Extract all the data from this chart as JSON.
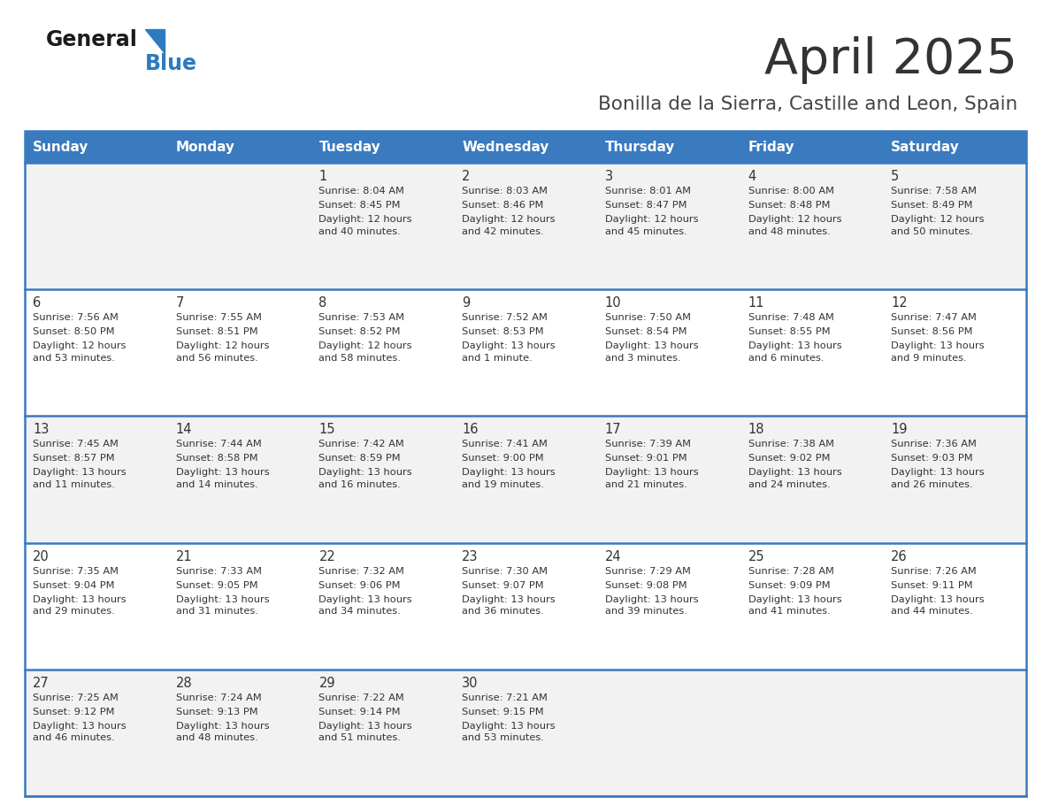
{
  "title": "April 2025",
  "subtitle": "Bonilla de la Sierra, Castille and Leon, Spain",
  "header_bg_color": "#3a7abf",
  "header_text_color": "#ffffff",
  "days_of_week": [
    "Sunday",
    "Monday",
    "Tuesday",
    "Wednesday",
    "Thursday",
    "Friday",
    "Saturday"
  ],
  "row_bg_even": "#f2f2f2",
  "row_bg_odd": "#ffffff",
  "cell_text_color": "#333333",
  "separator_color": "#3a7abf",
  "title_color": "#333333",
  "subtitle_color": "#444444",
  "calendar_data": [
    [
      {
        "day": "",
        "sunrise": "",
        "sunset": "",
        "daylight": ""
      },
      {
        "day": "",
        "sunrise": "",
        "sunset": "",
        "daylight": ""
      },
      {
        "day": "1",
        "sunrise": "Sunrise: 8:04 AM",
        "sunset": "Sunset: 8:45 PM",
        "daylight": "Daylight: 12 hours\nand 40 minutes."
      },
      {
        "day": "2",
        "sunrise": "Sunrise: 8:03 AM",
        "sunset": "Sunset: 8:46 PM",
        "daylight": "Daylight: 12 hours\nand 42 minutes."
      },
      {
        "day": "3",
        "sunrise": "Sunrise: 8:01 AM",
        "sunset": "Sunset: 8:47 PM",
        "daylight": "Daylight: 12 hours\nand 45 minutes."
      },
      {
        "day": "4",
        "sunrise": "Sunrise: 8:00 AM",
        "sunset": "Sunset: 8:48 PM",
        "daylight": "Daylight: 12 hours\nand 48 minutes."
      },
      {
        "day": "5",
        "sunrise": "Sunrise: 7:58 AM",
        "sunset": "Sunset: 8:49 PM",
        "daylight": "Daylight: 12 hours\nand 50 minutes."
      }
    ],
    [
      {
        "day": "6",
        "sunrise": "Sunrise: 7:56 AM",
        "sunset": "Sunset: 8:50 PM",
        "daylight": "Daylight: 12 hours\nand 53 minutes."
      },
      {
        "day": "7",
        "sunrise": "Sunrise: 7:55 AM",
        "sunset": "Sunset: 8:51 PM",
        "daylight": "Daylight: 12 hours\nand 56 minutes."
      },
      {
        "day": "8",
        "sunrise": "Sunrise: 7:53 AM",
        "sunset": "Sunset: 8:52 PM",
        "daylight": "Daylight: 12 hours\nand 58 minutes."
      },
      {
        "day": "9",
        "sunrise": "Sunrise: 7:52 AM",
        "sunset": "Sunset: 8:53 PM",
        "daylight": "Daylight: 13 hours\nand 1 minute."
      },
      {
        "day": "10",
        "sunrise": "Sunrise: 7:50 AM",
        "sunset": "Sunset: 8:54 PM",
        "daylight": "Daylight: 13 hours\nand 3 minutes."
      },
      {
        "day": "11",
        "sunrise": "Sunrise: 7:48 AM",
        "sunset": "Sunset: 8:55 PM",
        "daylight": "Daylight: 13 hours\nand 6 minutes."
      },
      {
        "day": "12",
        "sunrise": "Sunrise: 7:47 AM",
        "sunset": "Sunset: 8:56 PM",
        "daylight": "Daylight: 13 hours\nand 9 minutes."
      }
    ],
    [
      {
        "day": "13",
        "sunrise": "Sunrise: 7:45 AM",
        "sunset": "Sunset: 8:57 PM",
        "daylight": "Daylight: 13 hours\nand 11 minutes."
      },
      {
        "day": "14",
        "sunrise": "Sunrise: 7:44 AM",
        "sunset": "Sunset: 8:58 PM",
        "daylight": "Daylight: 13 hours\nand 14 minutes."
      },
      {
        "day": "15",
        "sunrise": "Sunrise: 7:42 AM",
        "sunset": "Sunset: 8:59 PM",
        "daylight": "Daylight: 13 hours\nand 16 minutes."
      },
      {
        "day": "16",
        "sunrise": "Sunrise: 7:41 AM",
        "sunset": "Sunset: 9:00 PM",
        "daylight": "Daylight: 13 hours\nand 19 minutes."
      },
      {
        "day": "17",
        "sunrise": "Sunrise: 7:39 AM",
        "sunset": "Sunset: 9:01 PM",
        "daylight": "Daylight: 13 hours\nand 21 minutes."
      },
      {
        "day": "18",
        "sunrise": "Sunrise: 7:38 AM",
        "sunset": "Sunset: 9:02 PM",
        "daylight": "Daylight: 13 hours\nand 24 minutes."
      },
      {
        "day": "19",
        "sunrise": "Sunrise: 7:36 AM",
        "sunset": "Sunset: 9:03 PM",
        "daylight": "Daylight: 13 hours\nand 26 minutes."
      }
    ],
    [
      {
        "day": "20",
        "sunrise": "Sunrise: 7:35 AM",
        "sunset": "Sunset: 9:04 PM",
        "daylight": "Daylight: 13 hours\nand 29 minutes."
      },
      {
        "day": "21",
        "sunrise": "Sunrise: 7:33 AM",
        "sunset": "Sunset: 9:05 PM",
        "daylight": "Daylight: 13 hours\nand 31 minutes."
      },
      {
        "day": "22",
        "sunrise": "Sunrise: 7:32 AM",
        "sunset": "Sunset: 9:06 PM",
        "daylight": "Daylight: 13 hours\nand 34 minutes."
      },
      {
        "day": "23",
        "sunrise": "Sunrise: 7:30 AM",
        "sunset": "Sunset: 9:07 PM",
        "daylight": "Daylight: 13 hours\nand 36 minutes."
      },
      {
        "day": "24",
        "sunrise": "Sunrise: 7:29 AM",
        "sunset": "Sunset: 9:08 PM",
        "daylight": "Daylight: 13 hours\nand 39 minutes."
      },
      {
        "day": "25",
        "sunrise": "Sunrise: 7:28 AM",
        "sunset": "Sunset: 9:09 PM",
        "daylight": "Daylight: 13 hours\nand 41 minutes."
      },
      {
        "day": "26",
        "sunrise": "Sunrise: 7:26 AM",
        "sunset": "Sunset: 9:11 PM",
        "daylight": "Daylight: 13 hours\nand 44 minutes."
      }
    ],
    [
      {
        "day": "27",
        "sunrise": "Sunrise: 7:25 AM",
        "sunset": "Sunset: 9:12 PM",
        "daylight": "Daylight: 13 hours\nand 46 minutes."
      },
      {
        "day": "28",
        "sunrise": "Sunrise: 7:24 AM",
        "sunset": "Sunset: 9:13 PM",
        "daylight": "Daylight: 13 hours\nand 48 minutes."
      },
      {
        "day": "29",
        "sunrise": "Sunrise: 7:22 AM",
        "sunset": "Sunset: 9:14 PM",
        "daylight": "Daylight: 13 hours\nand 51 minutes."
      },
      {
        "day": "30",
        "sunrise": "Sunrise: 7:21 AM",
        "sunset": "Sunset: 9:15 PM",
        "daylight": "Daylight: 13 hours\nand 53 minutes."
      },
      {
        "day": "",
        "sunrise": "",
        "sunset": "",
        "daylight": ""
      },
      {
        "day": "",
        "sunrise": "",
        "sunset": "",
        "daylight": ""
      },
      {
        "day": "",
        "sunrise": "",
        "sunset": "",
        "daylight": ""
      }
    ]
  ],
  "fig_width": 11.88,
  "fig_height": 9.18,
  "dpi": 100
}
